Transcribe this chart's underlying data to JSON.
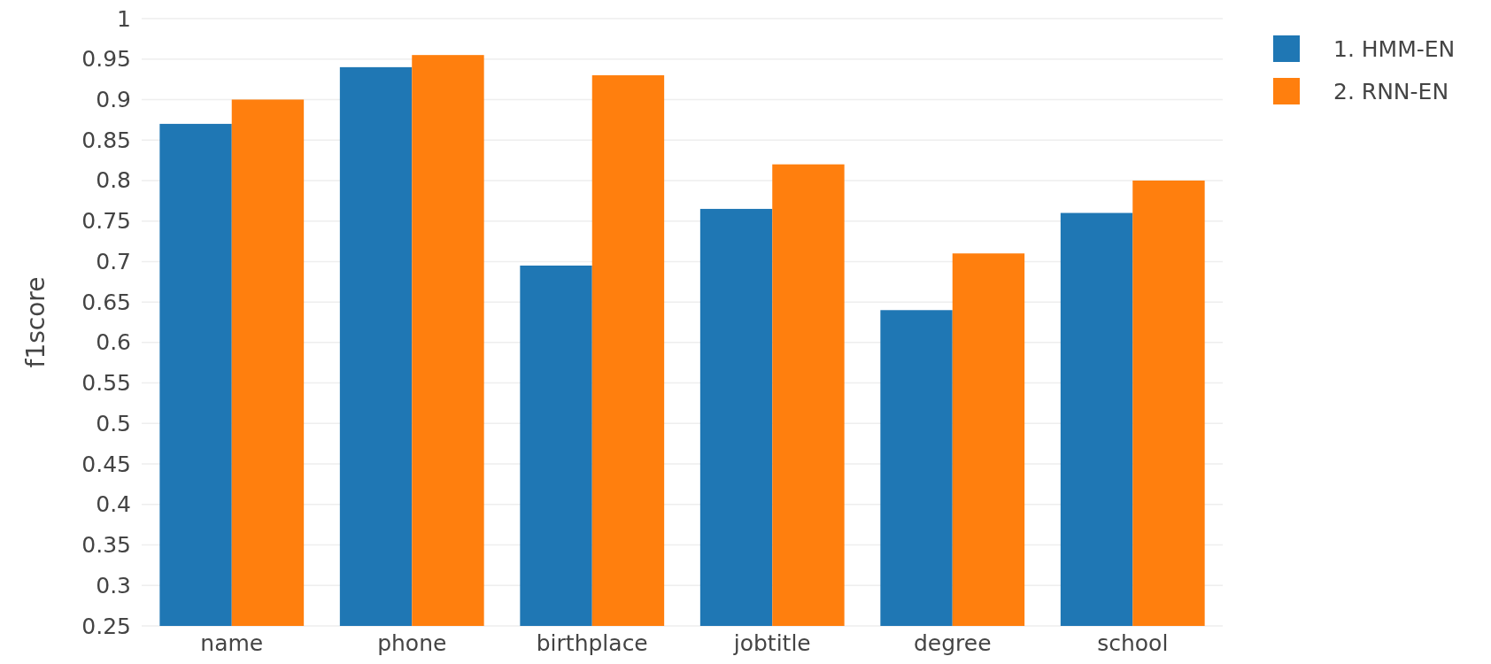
{
  "chart_data": {
    "type": "bar",
    "ylabel": "f1score",
    "categories": [
      "name",
      "phone",
      "birthplace",
      "jobtitle",
      "degree",
      "school"
    ],
    "series": [
      {
        "name": "1. HMM-EN",
        "color": "#1f77b4",
        "values": [
          0.87,
          0.94,
          0.695,
          0.765,
          0.64,
          0.76
        ]
      },
      {
        "name": "2. RNN-EN",
        "color": "#ff7f0e",
        "values": [
          0.9,
          0.955,
          0.93,
          0.82,
          0.71,
          0.8
        ]
      }
    ],
    "ylim": [
      0.25,
      1
    ],
    "yticks": [
      0.25,
      0.3,
      0.35,
      0.4,
      0.45,
      0.5,
      0.55,
      0.6,
      0.65,
      0.7,
      0.75,
      0.8,
      0.85,
      0.9,
      0.95,
      1
    ],
    "grid": "y",
    "legend": "top right"
  }
}
